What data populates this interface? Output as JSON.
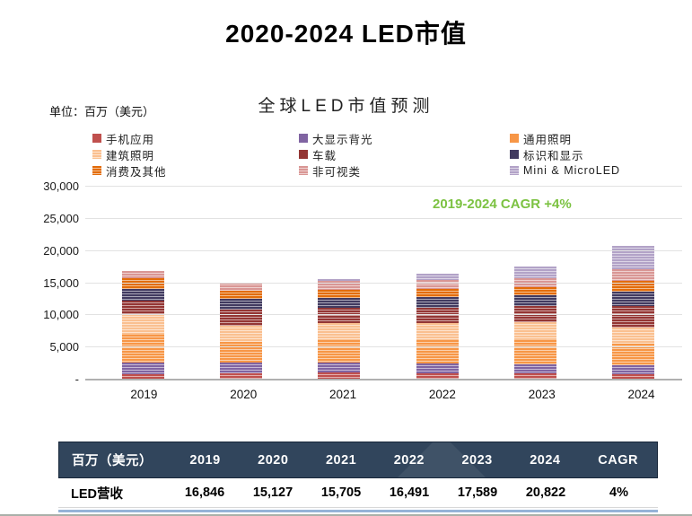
{
  "page_title": "2020-2024 LED市值",
  "chart": {
    "subtitle": "全球LED市值预测",
    "unit_label": "单位：百万（美元）",
    "cagr_note": "2019-2024 CAGR +4%",
    "cagr_color": "#7cc242"
  },
  "chart_data": {
    "type": "bar",
    "stacked": true,
    "title": "全球LED市值预测",
    "unit": "百万（美元）",
    "categories": [
      "2019",
      "2020",
      "2021",
      "2022",
      "2023",
      "2024"
    ],
    "ylim": [
      0,
      30000
    ],
    "ytick_interval": 5000,
    "ytick_labels": [
      "-",
      "5,000",
      "10,000",
      "15,000",
      "20,000",
      "25,000",
      "30,000"
    ],
    "grid": true,
    "legend_position": "top",
    "annotation": "2019-2024 CAGR +4%",
    "series": [
      {
        "name": "手机应用",
        "color": "#c0504d",
        "striped": false,
        "values": [
          846,
          1027,
          1105,
          991,
          939,
          822
        ]
      },
      {
        "name": "大显示背光",
        "color": "#8064a2",
        "striped": false,
        "values": [
          1800,
          1600,
          1500,
          1500,
          1500,
          1400
        ]
      },
      {
        "name": "通用照明",
        "color": "#f79646",
        "striped": false,
        "values": [
          4400,
          3300,
          3500,
          3600,
          3700,
          3300
        ]
      },
      {
        "name": "建筑照明",
        "color": "#fac090",
        "striped": true,
        "values": [
          3200,
          2500,
          2700,
          2700,
          2800,
          2600
        ]
      },
      {
        "name": "车载",
        "color": "#943634",
        "striped": false,
        "values": [
          2100,
          2500,
          2300,
          2400,
          2500,
          3300
        ]
      },
      {
        "name": "标识和显示",
        "color": "#413a60",
        "striped": false,
        "values": [
          1800,
          1600,
          1600,
          1700,
          1700,
          2200
        ]
      },
      {
        "name": "消费及其他",
        "color": "#e36c09",
        "striped": true,
        "values": [
          1600,
          1250,
          1200,
          1200,
          1200,
          1700
        ]
      },
      {
        "name": "非可视类",
        "color": "#d99694",
        "striped": true,
        "values": [
          1100,
          1350,
          1400,
          1400,
          1450,
          1900
        ]
      },
      {
        "name": "Mini & MicroLED",
        "color": "#b2a2c7",
        "striped": true,
        "values": [
          0,
          0,
          400,
          1000,
          1800,
          3600
        ]
      }
    ],
    "totals": [
      16846,
      15127,
      15705,
      16491,
      17589,
      20822
    ]
  },
  "table": {
    "header": [
      "百万（美元）",
      "2019",
      "2020",
      "2021",
      "2022",
      "2023",
      "2024",
      "CAGR"
    ],
    "rows": [
      [
        "LED营收",
        "16,846",
        "15,127",
        "15,705",
        "16,491",
        "17,589",
        "20,822",
        "4%"
      ]
    ],
    "header_bg": "#31455c",
    "underline_color": "#95b3d7"
  }
}
